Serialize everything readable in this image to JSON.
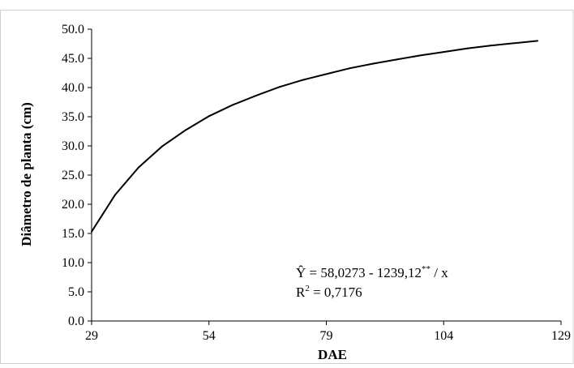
{
  "chart_data": {
    "type": "line",
    "xlabel": "DAE",
    "ylabel": "Diâmetro de planta (cm)",
    "xlim": [
      29,
      129
    ],
    "ylim": [
      0,
      50
    ],
    "x_ticks": [
      29,
      54,
      79,
      104,
      129
    ],
    "x_tick_labels": [
      "29",
      "54",
      "79",
      "104",
      "129"
    ],
    "y_ticks": [
      0,
      5,
      10,
      15,
      20,
      25,
      30,
      35,
      40,
      45,
      50
    ],
    "y_tick_labels": [
      "0.0",
      "5.0",
      "10.0",
      "15.0",
      "20.0",
      "25.0",
      "30.0",
      "35.0",
      "40.0",
      "45.0",
      "50.0"
    ],
    "series": [
      {
        "color": "#000000",
        "x": [
          29,
          34,
          39,
          44,
          49,
          54,
          59,
          64,
          69,
          74,
          79,
          84,
          89,
          94,
          99,
          104,
          109,
          114,
          119,
          124
        ],
        "y": [
          15.3,
          21.6,
          26.3,
          29.9,
          32.7,
          35.1,
          37.0,
          38.6,
          40.1,
          41.3,
          42.3,
          43.3,
          44.1,
          44.8,
          45.5,
          46.1,
          46.7,
          47.2,
          47.6,
          48.0
        ]
      }
    ],
    "grid": false,
    "legend": "none",
    "annotations": {
      "equation_lhs": "Ŷ = 58,0273 - 1239,12",
      "equation_sup": "**",
      "equation_rhs": " / x",
      "r2_lhs": "R",
      "r2_sup": "2",
      "r2_rhs": " = 0,7176"
    }
  }
}
